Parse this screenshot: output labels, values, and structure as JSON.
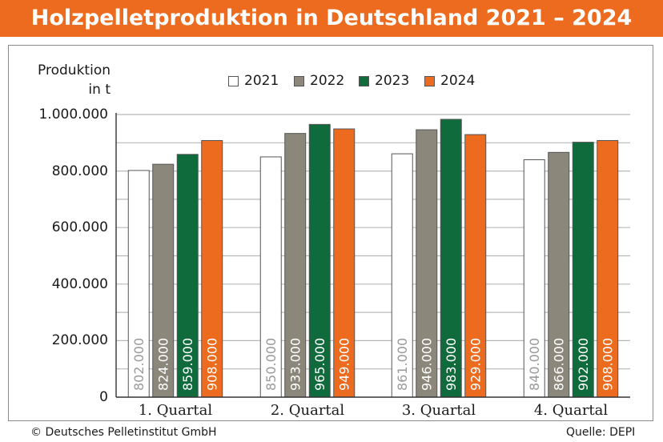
{
  "chart_data": {
    "type": "bar",
    "title": "Holzpelletproduktion in Deutschland 2021 – 2024",
    "ylabel_line1": "Produktion",
    "ylabel_line2": "in t",
    "ylim": [
      0,
      1000000
    ],
    "yticks": [
      "0",
      "200.000",
      "400.000",
      "600.000",
      "800.000",
      "1.000.000"
    ],
    "ytick_values": [
      0,
      200000,
      400000,
      600000,
      800000,
      1000000
    ],
    "categories": [
      "1. Quartal",
      "2. Quartal",
      "3. Quartal",
      "4. Quartal"
    ],
    "series": [
      {
        "name": "2021",
        "color": "#ffffff",
        "label_color": "#9a9a9a",
        "values": [
          802000,
          850000,
          861000,
          840000
        ],
        "labels": [
          "802.000",
          "850.000",
          "861.000",
          "840.000"
        ]
      },
      {
        "name": "2022",
        "color": "#8b877b",
        "label_color": "#ffffff",
        "values": [
          824000,
          933000,
          946000,
          866000
        ],
        "labels": [
          "824.000",
          "933.000",
          "946.000",
          "866.000"
        ]
      },
      {
        "name": "2023",
        "color": "#0f6a3c",
        "label_color": "#ffffff",
        "values": [
          859000,
          965000,
          983000,
          902000
        ],
        "labels": [
          "859.000",
          "965.000",
          "983.000",
          "902.000"
        ]
      },
      {
        "name": "2024",
        "color": "#ec6b1e",
        "label_color": "#ffffff",
        "values": [
          908000,
          949000,
          929000,
          908000
        ],
        "labels": [
          "908.000",
          "949.000",
          "929.000",
          "908.000"
        ]
      }
    ],
    "grid": true,
    "legend_position": "top"
  },
  "footer": {
    "copyright": "© Deutsches Pelletinstitut GmbH",
    "source": "Quelle: DEPI"
  }
}
